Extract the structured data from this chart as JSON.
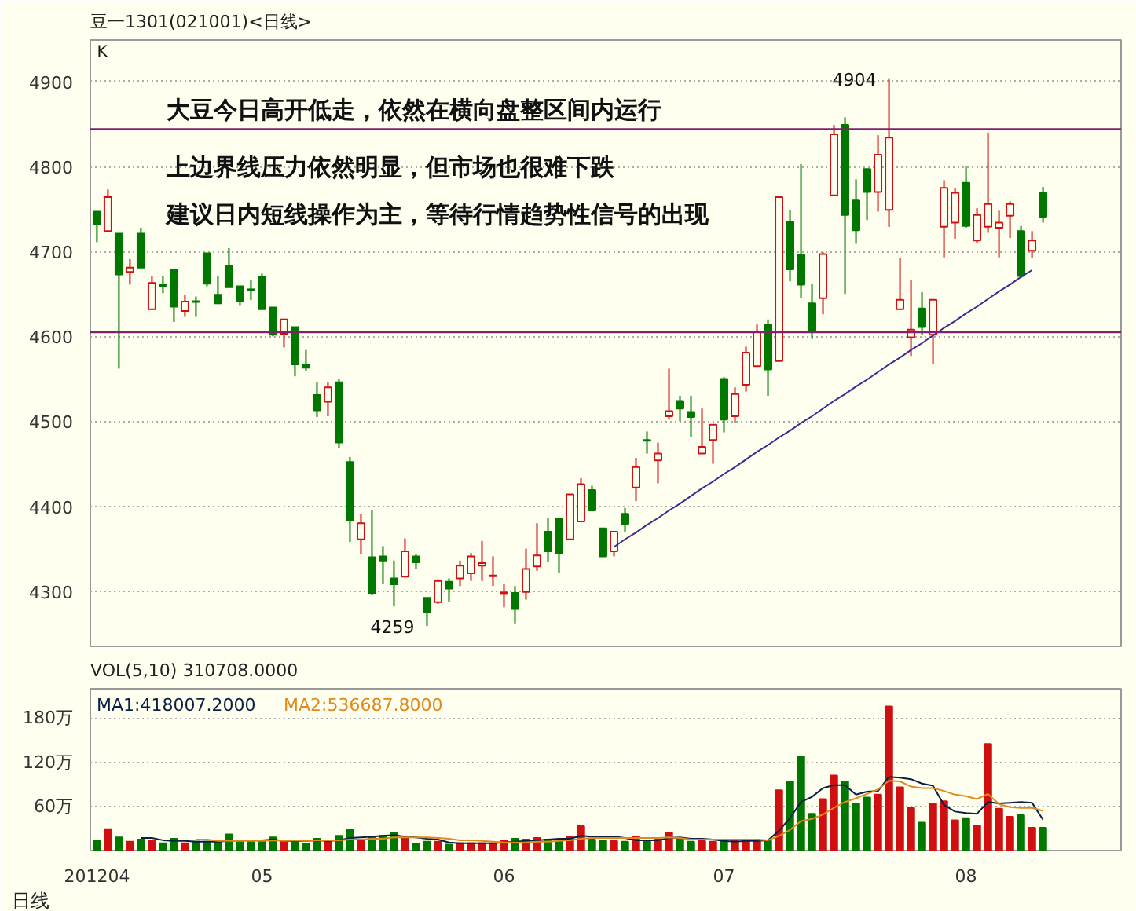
{
  "chart_data": [
    {
      "type": "candlestick",
      "title": "豆一1301(021001)<日线>",
      "categories": [
        "201204",
        null,
        null,
        null,
        null,
        null,
        null,
        null,
        null,
        null,
        null,
        null,
        null,
        null,
        null,
        "05",
        null,
        null,
        null,
        null,
        null,
        null,
        null,
        null,
        null,
        null,
        null,
        null,
        null,
        null,
        null,
        null,
        null,
        null,
        null,
        null,
        null,
        "06",
        null,
        null,
        null,
        null,
        null,
        null,
        null,
        null,
        null,
        null,
        null,
        null,
        null,
        null,
        null,
        null,
        null,
        null,
        null,
        "07",
        null,
        null,
        null,
        null,
        null,
        null,
        null,
        null,
        null,
        null,
        null,
        null,
        null,
        null,
        null,
        null,
        null,
        null,
        null,
        null,
        null,
        "08",
        null,
        null,
        null,
        null,
        null,
        null,
        null
      ],
      "ohlc": [
        [
          4747,
          4747,
          4711,
          4732
        ],
        [
          4724,
          4773,
          4724,
          4764
        ],
        [
          4721,
          4721,
          4562,
          4673
        ],
        [
          4676,
          4691,
          4661,
          4681
        ],
        [
          4721,
          4728,
          4681,
          4681
        ],
        [
          4632,
          4671,
          4632,
          4663
        ],
        [
          4660,
          4671,
          4651,
          4660
        ],
        [
          4678,
          4678,
          4617,
          4635
        ],
        [
          4630,
          4649,
          4623,
          4641
        ],
        [
          4641,
          4647,
          4623,
          4641
        ],
        [
          4698,
          4698,
          4659,
          4662
        ],
        [
          4649,
          4671,
          4638,
          4639
        ],
        [
          4683,
          4704,
          4658,
          4658
        ],
        [
          4659,
          4659,
          4636,
          4641
        ],
        [
          4655,
          4667,
          4643,
          4655
        ],
        [
          4670,
          4674,
          4632,
          4632
        ],
        [
          4634,
          4634,
          4600,
          4602
        ],
        [
          4603,
          4621,
          4587,
          4620
        ],
        [
          4611,
          4611,
          4553,
          4567
        ],
        [
          4567,
          4584,
          4559,
          4563
        ],
        [
          4531,
          4546,
          4505,
          4513
        ],
        [
          4523,
          4546,
          4506,
          4540
        ],
        [
          4546,
          4550,
          4468,
          4475
        ],
        [
          4452,
          4458,
          4358,
          4383
        ],
        [
          4361,
          4391,
          4344,
          4380
        ],
        [
          4340,
          4395,
          4296,
          4298
        ],
        [
          4341,
          4353,
          4309,
          4336
        ],
        [
          4315,
          4336,
          4282,
          4308
        ],
        [
          4317,
          4362,
          4317,
          4347
        ],
        [
          4341,
          4344,
          4326,
          4334
        ],
        [
          4292,
          4292,
          4259,
          4275
        ],
        [
          4287,
          4314,
          4285,
          4312
        ],
        [
          4311,
          4315,
          4287,
          4303
        ],
        [
          4315,
          4336,
          4306,
          4330
        ],
        [
          4321,
          4345,
          4312,
          4341
        ],
        [
          4330,
          4359,
          4312,
          4333
        ],
        [
          4318,
          4341,
          4306,
          4318
        ],
        [
          4298,
          4309,
          4281,
          4298
        ],
        [
          4298,
          4306,
          4262,
          4279
        ],
        [
          4299,
          4350,
          4290,
          4326
        ],
        [
          4329,
          4380,
          4324,
          4342
        ],
        [
          4370,
          4386,
          4334,
          4347
        ],
        [
          4385,
          4385,
          4321,
          4345
        ],
        [
          4361,
          4414,
          4361,
          4414
        ],
        [
          4382,
          4433,
          4382,
          4426
        ],
        [
          4419,
          4424,
          4394,
          4395
        ],
        [
          4374,
          4374,
          4341,
          4341
        ],
        [
          4347,
          4370,
          4341,
          4370
        ],
        [
          4391,
          4398,
          4370,
          4379
        ],
        [
          4422,
          4457,
          4406,
          4446
        ],
        [
          4478,
          4488,
          4462,
          4477
        ],
        [
          4454,
          4475,
          4427,
          4462
        ],
        [
          4506,
          4562,
          4502,
          4512
        ],
        [
          4524,
          4530,
          4500,
          4515
        ],
        [
          4511,
          4530,
          4481,
          4505
        ],
        [
          4462,
          4515,
          4462,
          4470
        ],
        [
          4478,
          4496,
          4450,
          4496
        ],
        [
          4550,
          4552,
          4487,
          4502
        ],
        [
          4506,
          4540,
          4498,
          4532
        ],
        [
          4543,
          4588,
          4535,
          4581
        ],
        [
          4565,
          4614,
          4565,
          4605
        ],
        [
          4614,
          4620,
          4530,
          4561
        ],
        [
          4571,
          4764,
          4571,
          4764
        ],
        [
          4735,
          4749,
          4665,
          4679
        ],
        [
          4696,
          4803,
          4645,
          4661
        ],
        [
          4639,
          4662,
          4597,
          4605
        ],
        [
          4645,
          4699,
          4626,
          4697
        ],
        [
          4766,
          4849,
          4766,
          4838
        ],
        [
          4849,
          4858,
          4650,
          4743
        ],
        [
          4760,
          4785,
          4709,
          4725
        ],
        [
          4797,
          4797,
          4737,
          4770
        ],
        [
          4770,
          4837,
          4747,
          4814
        ],
        [
          4749,
          4904,
          4729,
          4834
        ],
        [
          4632,
          4692,
          4632,
          4643
        ],
        [
          4599,
          4667,
          4577,
          4608
        ],
        [
          4633,
          4652,
          4602,
          4611
        ],
        [
          4602,
          4643,
          4567,
          4643
        ],
        [
          4729,
          4784,
          4693,
          4775
        ],
        [
          4734,
          4775,
          4715,
          4769
        ],
        [
          4781,
          4800,
          4728,
          4730
        ],
        [
          4713,
          4751,
          4710,
          4743
        ],
        [
          4729,
          4840,
          4722,
          4756
        ],
        [
          4728,
          4748,
          4693,
          4734
        ],
        [
          4742,
          4759,
          4716,
          4756
        ],
        [
          4724,
          4730,
          4669,
          4671
        ],
        [
          4701,
          4724,
          4692,
          4713
        ],
        [
          4769,
          4776,
          4734,
          4741
        ]
      ],
      "colors": [
        "#007800",
        "#d01010",
        "#007800",
        "#d01010",
        "#007800",
        "#d01010",
        "#007800",
        "#007800",
        "#d01010",
        "#007800",
        "#007800",
        "#007800",
        "#007800",
        "#007800",
        "#007800",
        "#007800",
        "#007800",
        "#d01010",
        "#007800",
        "#007800",
        "#007800",
        "#d01010",
        "#007800",
        "#007800",
        "#d01010",
        "#007800",
        "#007800",
        "#007800",
        "#d01010",
        "#007800",
        "#007800",
        "#d01010",
        "#007800",
        "#d01010",
        "#d01010",
        "#d01010",
        "#d01010",
        "#d01010",
        "#007800",
        "#d01010",
        "#d01010",
        "#007800",
        "#007800",
        "#d01010",
        "#d01010",
        "#007800",
        "#007800",
        "#d01010",
        "#007800",
        "#d01010",
        "#007800",
        "#d01010",
        "#d01010",
        "#007800",
        "#007800",
        "#d01010",
        "#d01010",
        "#007800",
        "#d01010",
        "#d01010",
        "#d01010",
        "#007800",
        "#d01010",
        "#007800",
        "#007800",
        "#007800",
        "#d01010",
        "#d01010",
        "#007800",
        "#007800",
        "#007800",
        "#d01010",
        "#d01010",
        "#d01010",
        "#d01010",
        "#007800",
        "#d01010",
        "#d01010",
        "#d01010",
        "#007800",
        "#d01010",
        "#d01010",
        "#d01010",
        "#d01010",
        "#007800",
        "#d01010",
        "#007800"
      ],
      "series": [
        {
          "type": "line",
          "color": "#3a2d8f",
          "values": [
            null,
            null,
            null,
            null,
            null,
            null,
            null,
            null,
            null,
            null,
            null,
            null,
            null,
            null,
            null,
            null,
            null,
            null,
            null,
            null,
            null,
            null,
            null,
            null,
            null,
            null,
            null,
            null,
            null,
            null,
            null,
            null,
            null,
            null,
            null,
            null,
            null,
            null,
            null,
            null,
            null,
            null,
            null,
            null,
            null,
            null,
            null,
            4352,
            4361,
            4369,
            4378,
            4386,
            4395,
            4403,
            4412,
            4421,
            4429,
            4438,
            4446,
            4455,
            4464,
            4472,
            4481,
            4489,
            4498,
            4506,
            4515,
            4524,
            4532,
            4541,
            4549,
            4558,
            4567,
            4575,
            4584,
            4592,
            4601,
            4610,
            4618,
            4627,
            4635,
            4644,
            4653,
            4661,
            4670,
            4678,
            null
          ]
        }
      ],
      "ylim": [
        4235,
        4949
      ],
      "yticks": [
        4300,
        4400,
        4500,
        4600,
        4700,
        4800,
        4900
      ],
      "tick_labels": "y",
      "grid": "y",
      "ref_lines": [
        {
          "axis": "y",
          "value": 4844,
          "color": "#80206e"
        },
        {
          "axis": "y",
          "value": 4605,
          "color": "#80206e"
        }
      ],
      "annotations": [
        "K",
        "大豆今日高开低走，依然在横向盘整区间内运行",
        "上边界线压力依然明显，但市场也很难下跌",
        "建议日内短线操作为主，等待行情趋势性信号的出现",
        "4904",
        "4259"
      ]
    },
    {
      "type": "bar",
      "title": "VOL(5,10) 310708.0000",
      "xlabel": "日线",
      "categories": [
        "201204",
        null,
        null,
        null,
        null,
        null,
        null,
        null,
        null,
        null,
        null,
        null,
        null,
        null,
        null,
        "05",
        null,
        null,
        null,
        null,
        null,
        null,
        null,
        null,
        null,
        null,
        null,
        null,
        null,
        null,
        null,
        null,
        null,
        null,
        null,
        null,
        null,
        "06",
        null,
        null,
        null,
        null,
        null,
        null,
        null,
        null,
        null,
        null,
        null,
        null,
        null,
        null,
        null,
        null,
        null,
        null,
        null,
        "07",
        null,
        null,
        null,
        null,
        null,
        null,
        null,
        null,
        null,
        null,
        null,
        null,
        null,
        null,
        null,
        null,
        null,
        null,
        null,
        null,
        null,
        "08",
        null,
        null,
        null,
        null,
        null,
        null,
        null
      ],
      "series": [
        {
          "type": "bar",
          "values": [
            14,
            29,
            18,
            12,
            15,
            14,
            10,
            16,
            10,
            12,
            12,
            13,
            22,
            12,
            12,
            12,
            18,
            12,
            14,
            9,
            16,
            13,
            20,
            28,
            15,
            19,
            20,
            24,
            18,
            9,
            12,
            12,
            8,
            10,
            10,
            10,
            10,
            13,
            16,
            15,
            17,
            15,
            15,
            19,
            33,
            15,
            14,
            13,
            12,
            19,
            14,
            15,
            24,
            17,
            12,
            13,
            12,
            13,
            13,
            15,
            15,
            13,
            82,
            94,
            128,
            50,
            70,
            102,
            94,
            64,
            72,
            76,
            196,
            86,
            58,
            38,
            64,
            67,
            41,
            44,
            34,
            145,
            57,
            46,
            48,
            31,
            31
          ],
          "colors": [
            "#007800",
            "#d01010",
            "#007800",
            "#d01010",
            "#007800",
            "#d01010",
            "#007800",
            "#007800",
            "#d01010",
            "#007800",
            "#007800",
            "#007800",
            "#007800",
            "#007800",
            "#007800",
            "#007800",
            "#007800",
            "#d01010",
            "#007800",
            "#007800",
            "#007800",
            "#d01010",
            "#007800",
            "#007800",
            "#d01010",
            "#007800",
            "#007800",
            "#007800",
            "#d01010",
            "#007800",
            "#007800",
            "#d01010",
            "#007800",
            "#d01010",
            "#d01010",
            "#d01010",
            "#d01010",
            "#d01010",
            "#007800",
            "#d01010",
            "#d01010",
            "#007800",
            "#007800",
            "#d01010",
            "#d01010",
            "#007800",
            "#007800",
            "#d01010",
            "#007800",
            "#d01010",
            "#007800",
            "#d01010",
            "#d01010",
            "#007800",
            "#007800",
            "#d01010",
            "#d01010",
            "#007800",
            "#d01010",
            "#d01010",
            "#d01010",
            "#007800",
            "#d01010",
            "#007800",
            "#007800",
            "#007800",
            "#d01010",
            "#d01010",
            "#007800",
            "#007800",
            "#007800",
            "#d01010",
            "#d01010",
            "#d01010",
            "#d01010",
            "#007800",
            "#d01010",
            "#d01010",
            "#d01010",
            "#007800",
            "#d01010",
            "#d01010",
            "#d01010",
            "#d01010",
            "#007800",
            "#d01010",
            "#007800"
          ]
        },
        {
          "type": "line",
          "name": "MA1:418007.2000",
          "color": "#0a1f44",
          "values": [
            null,
            null,
            null,
            null,
            17,
            17,
            14,
            13,
            13,
            12,
            12,
            12,
            13,
            14,
            14,
            14,
            15,
            13,
            13,
            13,
            14,
            13,
            14,
            17,
            18,
            19,
            20,
            21,
            19,
            18,
            16,
            15,
            11,
            10,
            10,
            10,
            10,
            11,
            12,
            13,
            14,
            15,
            16,
            16,
            20,
            19,
            19,
            19,
            17,
            14,
            14,
            14,
            17,
            18,
            16,
            16,
            15,
            13,
            12,
            13,
            13,
            14,
            27,
            44,
            66,
            73,
            85,
            89,
            89,
            76,
            80,
            81,
            100,
            99,
            97,
            91,
            88,
            62,
            53,
            51,
            50,
            66,
            64,
            65,
            66,
            65,
            42
          ]
        },
        {
          "type": "line",
          "name": "MA2:536687.8000",
          "color": "#e08a1e",
          "values": [
            null,
            null,
            null,
            null,
            null,
            null,
            null,
            null,
            null,
            15,
            15,
            13,
            13,
            13,
            13,
            13,
            14,
            13,
            14,
            13,
            14,
            14,
            14,
            15,
            15,
            16,
            16,
            18,
            18,
            18,
            18,
            17,
            16,
            14,
            14,
            13,
            12,
            11,
            11,
            11,
            12,
            12,
            13,
            14,
            16,
            17,
            17,
            17,
            17,
            17,
            17,
            17,
            18,
            17,
            15,
            15,
            15,
            15,
            15,
            15,
            15,
            14,
            20,
            28,
            40,
            43,
            49,
            58,
            66,
            71,
            77,
            83,
            95,
            94,
            87,
            85,
            85,
            81,
            76,
            74,
            70,
            77,
            63,
            59,
            58,
            58,
            54
          ]
        }
      ],
      "ylim": [
        0,
        220
      ],
      "yticks": [
        {
          "value": 60,
          "label": "60万"
        },
        {
          "value": 120,
          "label": "120万"
        },
        {
          "value": 180,
          "label": "180万"
        }
      ],
      "grid": "y",
      "legend": "top left"
    }
  ]
}
